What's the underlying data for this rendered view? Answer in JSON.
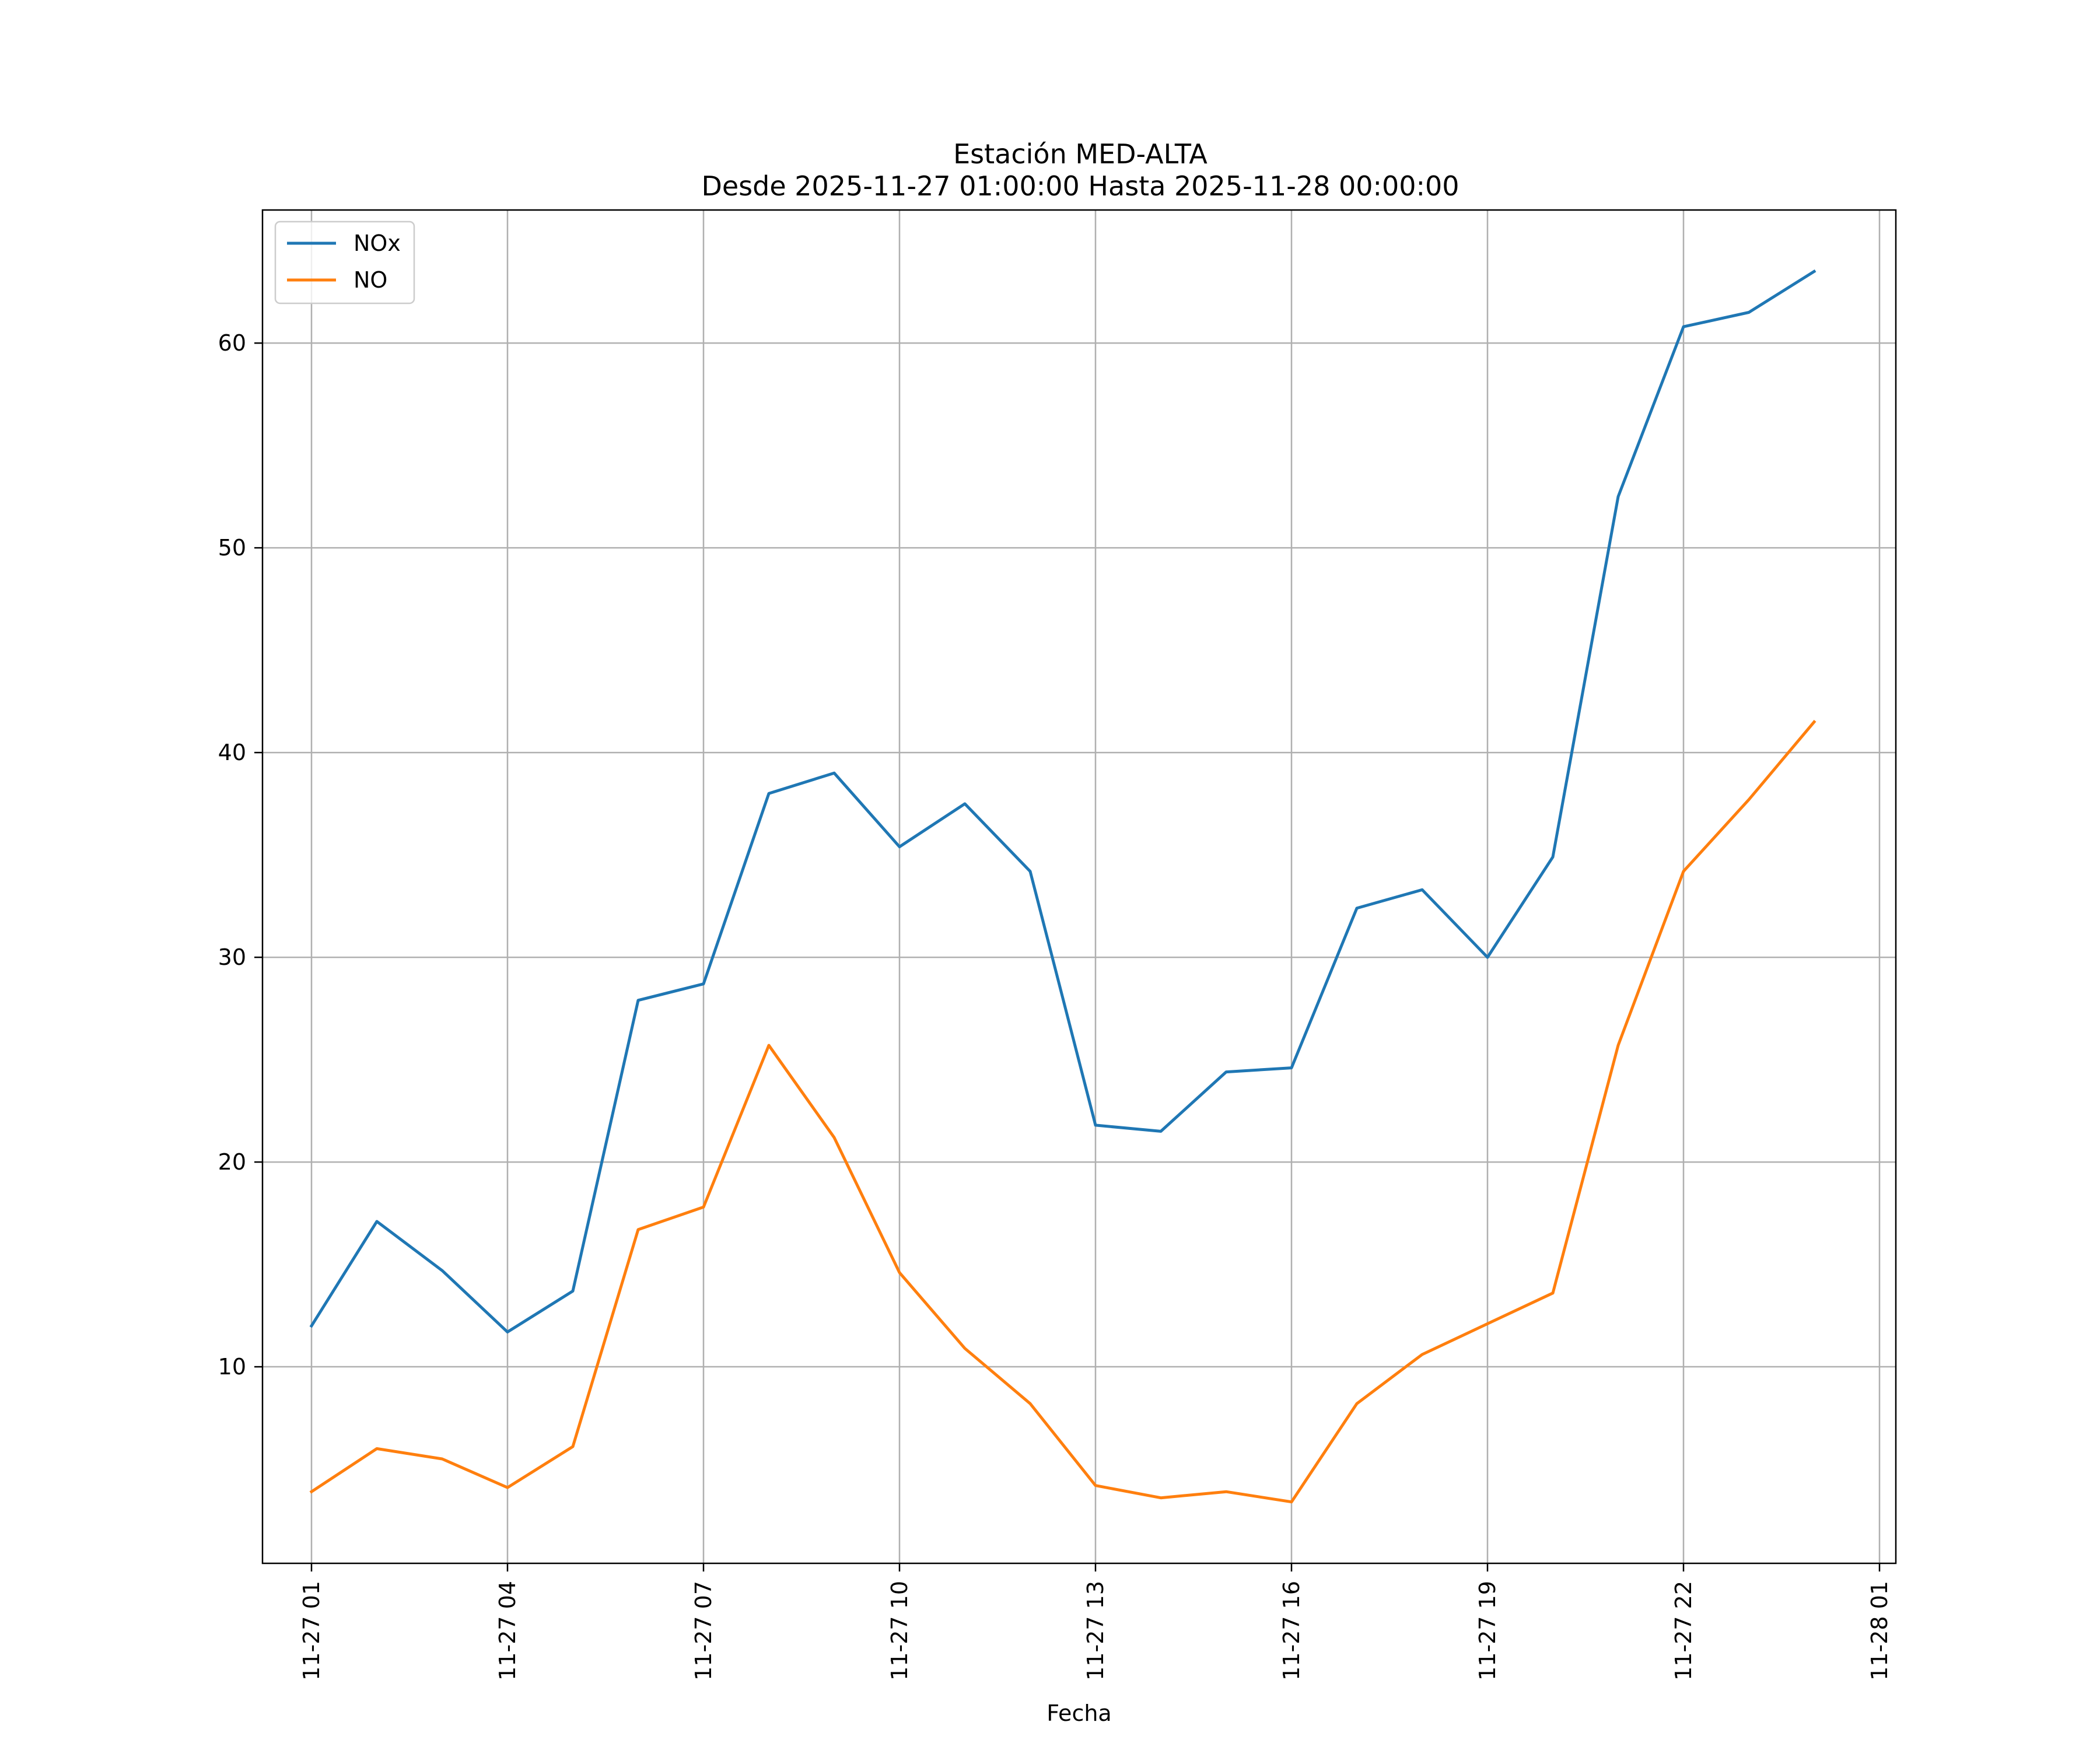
{
  "chart_data": {
    "type": "line",
    "title": "Estación MED-ALTA",
    "subtitle": "Desde 2025-11-27 01:00:00 Hasta 2025-11-28 00:00:00",
    "xlabel": "Fecha",
    "ylabel": "",
    "x": [
      "2025-11-27 01:00",
      "2025-11-27 02:00",
      "2025-11-27 03:00",
      "2025-11-27 04:00",
      "2025-11-27 05:00",
      "2025-11-27 06:00",
      "2025-11-27 07:00",
      "2025-11-27 08:00",
      "2025-11-27 09:00",
      "2025-11-27 10:00",
      "2025-11-27 11:00",
      "2025-11-27 12:00",
      "2025-11-27 13:00",
      "2025-11-27 14:00",
      "2025-11-27 15:00",
      "2025-11-27 16:00",
      "2025-11-27 17:00",
      "2025-11-27 18:00",
      "2025-11-27 19:00",
      "2025-11-27 20:00",
      "2025-11-27 21:00",
      "2025-11-27 22:00",
      "2025-11-27 23:00",
      "2025-11-28 00:00"
    ],
    "xlim": [
      "2025-11-27 00:15",
      "2025-11-28 01:15"
    ],
    "xticks": [
      "2025-11-27 01:00",
      "2025-11-27 04:00",
      "2025-11-27 07:00",
      "2025-11-27 10:00",
      "2025-11-27 13:00",
      "2025-11-27 16:00",
      "2025-11-27 19:00",
      "2025-11-27 22:00",
      "2025-11-28 01:00"
    ],
    "xtick_labels": [
      "11-27 01",
      "11-27 04",
      "11-27 07",
      "11-27 10",
      "11-27 13",
      "11-27 16",
      "11-27 19",
      "11-27 22",
      "11-28 01"
    ],
    "ylim": [
      0.4,
      66.5
    ],
    "yticks": [
      10,
      20,
      30,
      40,
      50,
      60
    ],
    "ytick_labels": [
      "10",
      "20",
      "30",
      "40",
      "50",
      "60"
    ],
    "grid": true,
    "legend_position": "top-left",
    "series": [
      {
        "name": "NOx",
        "color": "#1f77b4",
        "values": [
          12.0,
          17.1,
          14.7,
          11.7,
          13.7,
          27.9,
          28.7,
          38.0,
          39.0,
          35.4,
          37.5,
          34.2,
          21.8,
          21.5,
          24.4,
          24.6,
          32.4,
          33.3,
          30.0,
          34.9,
          52.5,
          60.8,
          61.5,
          63.5
        ]
      },
      {
        "name": "NO",
        "color": "#ff7f0e",
        "values": [
          3.9,
          6.0,
          5.5,
          4.1,
          6.1,
          16.7,
          17.8,
          25.7,
          21.2,
          14.6,
          10.9,
          8.2,
          4.2,
          3.6,
          3.9,
          3.4,
          8.2,
          10.6,
          12.1,
          13.6,
          25.7,
          34.2,
          37.7,
          41.5
        ]
      }
    ]
  }
}
